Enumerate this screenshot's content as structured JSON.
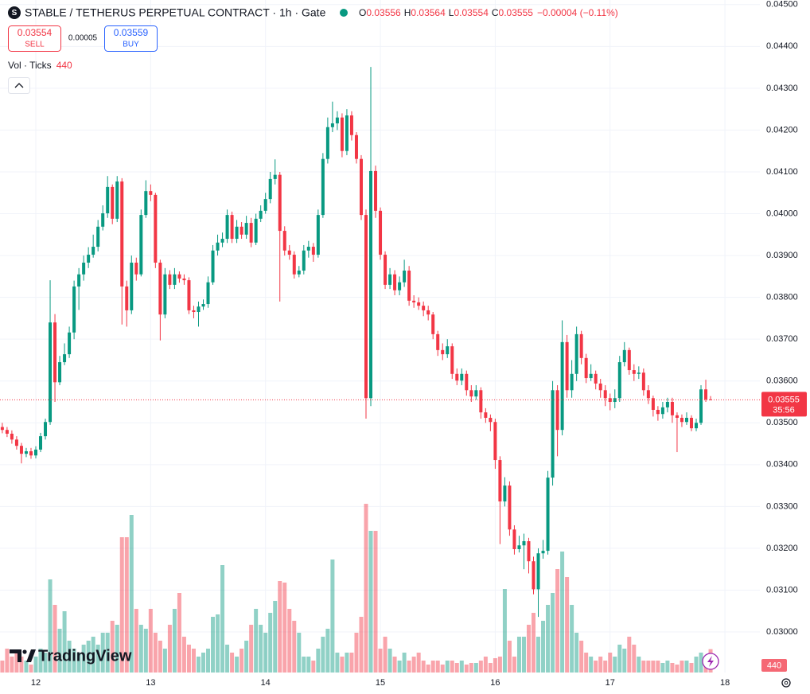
{
  "chart_data": {
    "type": "candlestick",
    "title": "STABLE / TETHERUS PERPETUAL CONTRACT · 1h · Gate",
    "ohlc_labels": [
      "O",
      "H",
      "L",
      "C"
    ],
    "change": "−0.00004 (−0.11%)",
    "sell": {
      "price": 0.03554,
      "label": "SELL"
    },
    "spread": 5e-05,
    "buy": {
      "price": 0.03559,
      "label": "BUY"
    },
    "countdown": "35:56",
    "watermark": "TradingView",
    "up_color": "#089981",
    "down_color": "#f23645",
    "grid": true,
    "xlim": [
      -0.48,
      158.3
    ],
    "xticks": [
      {
        "value": 7,
        "label": "12"
      },
      {
        "value": 31,
        "label": "13"
      },
      {
        "value": 55,
        "label": "14"
      },
      {
        "value": 79,
        "label": "15"
      },
      {
        "value": 103,
        "label": "16"
      },
      {
        "value": 127,
        "label": "17"
      },
      {
        "value": 151,
        "label": "18"
      }
    ],
    "ylim": [
      0.02903,
      0.04511
    ],
    "yticks": [
      {
        "value": 0.03,
        "label": "0.03000"
      },
      {
        "value": 0.031,
        "label": "0.03100"
      },
      {
        "value": 0.032,
        "label": "0.03200"
      },
      {
        "value": 0.033,
        "label": "0.03300"
      },
      {
        "value": 0.034,
        "label": "0.03400"
      },
      {
        "value": 0.035,
        "label": "0.03500"
      },
      {
        "value": 0.036,
        "label": "0.03600"
      },
      {
        "value": 0.037,
        "label": "0.03700"
      },
      {
        "value": 0.038,
        "label": "0.03800"
      },
      {
        "value": 0.039,
        "label": "0.03900"
      },
      {
        "value": 0.04,
        "label": "0.04000"
      },
      {
        "value": 0.041,
        "label": "0.04100"
      },
      {
        "value": 0.042,
        "label": "0.04200"
      },
      {
        "value": 0.043,
        "label": "0.04300"
      },
      {
        "value": 0.044,
        "label": "0.04400"
      },
      {
        "value": 0.045,
        "label": "0.04500"
      }
    ],
    "open": [
      0.0349,
      0.03483,
      0.03474,
      0.0346,
      0.03445,
      0.03426,
      0.03432,
      0.03422,
      0.03436,
      0.03468,
      0.03502,
      0.0374,
      0.03597,
      0.03645,
      0.03664,
      0.03716,
      0.03826,
      0.03855,
      0.03883,
      0.03902,
      0.03921,
      0.03969,
      0.04001,
      0.04064,
      0.03988,
      0.04077,
      0.03826,
      0.03769,
      0.03883,
      0.03855,
      0.03997,
      0.04054,
      0.04045,
      0.03883,
      0.03759,
      0.03855,
      0.0383,
      0.03855,
      0.03845,
      0.03841,
      0.03769,
      0.03765,
      0.03778,
      0.03784,
      0.03836,
      0.03912,
      0.03931,
      0.0394,
      0.03997,
      0.0394,
      0.03969,
      0.0395,
      0.03978,
      0.03931,
      0.03988,
      0.04007,
      0.04035,
      0.04083,
      0.04093,
      0.03959,
      0.03912,
      0.03902,
      0.03855,
      0.03864,
      0.03912,
      0.03921,
      0.03902,
      0.03997,
      0.04131,
      0.04207,
      0.04216,
      0.0423,
      0.0415,
      0.04235,
      0.04188,
      0.04131,
      0.03997,
      0.03559,
      0.04102,
      0.04007,
      0.03902,
      0.0383,
      0.03855,
      0.03817,
      0.03836,
      0.03864,
      0.03792,
      0.03788,
      0.0378,
      0.03769,
      0.03759,
      0.03712,
      0.03674,
      0.03664,
      0.03683,
      0.03617,
      0.03601,
      0.03617,
      0.03578,
      0.03563,
      0.03578,
      0.03525,
      0.03512,
      0.03502,
      0.03411,
      0.03312,
      0.0335,
      0.03245,
      0.03198,
      0.03207,
      0.03217,
      0.03169,
      0.03102,
      0.03188,
      0.03194,
      0.03369,
      0.03578,
      0.03483,
      0.03693,
      0.03578,
      0.03617,
      0.03712,
      0.03655,
      0.03607,
      0.03617,
      0.03594,
      0.03578,
      0.03559,
      0.0355,
      0.03559,
      0.03645,
      0.03674,
      0.03626,
      0.03617,
      0.0362,
      0.03578,
      0.03559,
      0.03531,
      0.03521,
      0.03537,
      0.0355,
      0.03518,
      0.03512,
      0.03502,
      0.03512,
      0.03487,
      0.035,
      0.0358,
      0.03556
    ],
    "high": [
      0.035,
      0.0349,
      0.03482,
      0.03468,
      0.03452,
      0.0344,
      0.0344,
      0.03444,
      0.03476,
      0.0351,
      0.03841,
      0.0376,
      0.0366,
      0.0369,
      0.0373,
      0.0384,
      0.0387,
      0.039,
      0.0392,
      0.0395,
      0.03985,
      0.0402,
      0.0409,
      0.0407,
      0.0409,
      0.04085,
      0.0384,
      0.039,
      0.03895,
      0.0401,
      0.0408,
      0.0407,
      0.0405,
      0.0389,
      0.0387,
      0.03865,
      0.0387,
      0.03862,
      0.03855,
      0.03848,
      0.0378,
      0.0379,
      0.03795,
      0.0385,
      0.03925,
      0.0395,
      0.03955,
      0.0401,
      0.04005,
      0.03985,
      0.0398,
      0.03995,
      0.0399,
      0.04,
      0.0402,
      0.0405,
      0.041,
      0.0413,
      0.041,
      0.0397,
      0.03925,
      0.0391,
      0.03875,
      0.03925,
      0.03935,
      0.0393,
      0.0401,
      0.04145,
      0.0423,
      0.04268,
      0.04245,
      0.0424,
      0.0425,
      0.04245,
      0.04195,
      0.0414,
      0.0401,
      0.04351,
      0.04115,
      0.04015,
      0.0391,
      0.0387,
      0.03865,
      0.0385,
      0.0389,
      0.03875,
      0.03805,
      0.038,
      0.0379,
      0.0378,
      0.03765,
      0.0372,
      0.0369,
      0.037,
      0.0369,
      0.0363,
      0.0363,
      0.03625,
      0.0359,
      0.0359,
      0.03585,
      0.03535,
      0.0352,
      0.0351,
      0.0342,
      0.0337,
      0.0336,
      0.03255,
      0.0323,
      0.03235,
      0.03225,
      0.0318,
      0.032,
      0.0322,
      0.03385,
      0.036,
      0.0359,
      0.03745,
      0.0371,
      0.0365,
      0.0373,
      0.0372,
      0.03665,
      0.0364,
      0.03625,
      0.03605,
      0.0359,
      0.0357,
      0.0358,
      0.0366,
      0.03693,
      0.0368,
      0.0364,
      0.03635,
      0.0363,
      0.0359,
      0.03565,
      0.0354,
      0.0355,
      0.0356,
      0.0356,
      0.03525,
      0.0352,
      0.03525,
      0.03518,
      0.0351,
      0.0359,
      0.03603,
      0.03564
    ],
    "low": [
      0.03475,
      0.03466,
      0.0345,
      0.03436,
      0.03403,
      0.03418,
      0.03414,
      0.03415,
      0.0343,
      0.0346,
      0.03495,
      0.0355,
      0.0359,
      0.03638,
      0.03655,
      0.037,
      0.0377,
      0.0384,
      0.0387,
      0.03895,
      0.0391,
      0.0396,
      0.0399,
      0.03975,
      0.0398,
      0.03735,
      0.0373,
      0.0376,
      0.0384,
      0.0385,
      0.0399,
      0.0403,
      0.0387,
      0.03697,
      0.0375,
      0.0382,
      0.0382,
      0.03835,
      0.0383,
      0.0376,
      0.0375,
      0.0373,
      0.0377,
      0.03775,
      0.0383,
      0.039,
      0.0392,
      0.0393,
      0.0393,
      0.0393,
      0.0394,
      0.0394,
      0.0392,
      0.03925,
      0.0398,
      0.04,
      0.04025,
      0.0407,
      0.0379,
      0.039,
      0.0389,
      0.03845,
      0.03848,
      0.03855,
      0.03895,
      0.03885,
      0.03895,
      0.0399,
      0.0412,
      0.04195,
      0.042,
      0.04135,
      0.0414,
      0.04175,
      0.0412,
      0.03985,
      0.0351,
      0.0354,
      0.0399,
      0.0389,
      0.0382,
      0.0382,
      0.03805,
      0.03805,
      0.03825,
      0.0378,
      0.03775,
      0.0377,
      0.03755,
      0.03745,
      0.037,
      0.0366,
      0.0365,
      0.03655,
      0.03605,
      0.0359,
      0.0359,
      0.03565,
      0.0355,
      0.03555,
      0.0351,
      0.035,
      0.0348,
      0.0339,
      0.0321,
      0.033,
      0.0323,
      0.03185,
      0.0319,
      0.0315,
      0.0314,
      0.0309,
      0.03036,
      0.03175,
      0.03185,
      0.0335,
      0.0342,
      0.0347,
      0.0356,
      0.0356,
      0.036,
      0.0364,
      0.03595,
      0.036,
      0.0358,
      0.0356,
      0.0354,
      0.0353,
      0.03535,
      0.0355,
      0.03635,
      0.03615,
      0.036,
      0.03605,
      0.03565,
      0.03545,
      0.03515,
      0.03505,
      0.0351,
      0.03525,
      0.035,
      0.0343,
      0.0349,
      0.03495,
      0.0348,
      0.0348,
      0.03495,
      0.0355,
      0.03554
    ],
    "close": [
      0.03483,
      0.03474,
      0.0346,
      0.03445,
      0.03426,
      0.03432,
      0.03422,
      0.03436,
      0.03468,
      0.03502,
      0.0374,
      0.03597,
      0.03645,
      0.03664,
      0.03716,
      0.03826,
      0.03855,
      0.03883,
      0.03902,
      0.03921,
      0.03969,
      0.04001,
      0.04064,
      0.03988,
      0.04077,
      0.03826,
      0.03769,
      0.03883,
      0.03855,
      0.03997,
      0.04054,
      0.04045,
      0.03883,
      0.03759,
      0.03855,
      0.0383,
      0.03855,
      0.03845,
      0.03841,
      0.03769,
      0.03765,
      0.03778,
      0.03784,
      0.03836,
      0.03912,
      0.03931,
      0.0394,
      0.03997,
      0.0394,
      0.03969,
      0.0395,
      0.03978,
      0.03931,
      0.03988,
      0.04007,
      0.04035,
      0.04083,
      0.04093,
      0.03959,
      0.03912,
      0.03902,
      0.03855,
      0.03864,
      0.03912,
      0.03921,
      0.03902,
      0.03997,
      0.04131,
      0.04207,
      0.04216,
      0.0423,
      0.0415,
      0.04235,
      0.04188,
      0.04131,
      0.03997,
      0.03559,
      0.04102,
      0.04007,
      0.03902,
      0.0383,
      0.03855,
      0.03817,
      0.03836,
      0.03864,
      0.03792,
      0.03788,
      0.0378,
      0.03769,
      0.03759,
      0.03712,
      0.03674,
      0.03664,
      0.03683,
      0.03617,
      0.03601,
      0.03617,
      0.03578,
      0.03563,
      0.03578,
      0.03525,
      0.03512,
      0.03502,
      0.03411,
      0.03312,
      0.0335,
      0.03245,
      0.03198,
      0.03207,
      0.03217,
      0.03169,
      0.03102,
      0.03188,
      0.03194,
      0.03369,
      0.03578,
      0.03483,
      0.03693,
      0.03578,
      0.03617,
      0.03712,
      0.03655,
      0.03607,
      0.03617,
      0.03594,
      0.03578,
      0.03559,
      0.0355,
      0.03559,
      0.03645,
      0.03674,
      0.03626,
      0.03617,
      0.0362,
      0.03578,
      0.03559,
      0.03531,
      0.03521,
      0.03537,
      0.0355,
      0.03518,
      0.03512,
      0.03502,
      0.03512,
      0.03487,
      0.035,
      0.0358,
      0.03556,
      0.03555
    ],
    "volume": {
      "name": "Vol · Ticks",
      "ylim": [
        0,
        4500
      ],
      "values": [
        225,
        450,
        300,
        375,
        300,
        225,
        150,
        300,
        450,
        375,
        1755,
        1275,
        825,
        1155,
        600,
        450,
        375,
        525,
        600,
        675,
        525,
        750,
        750,
        975,
        900,
        2550,
        2550,
        2970,
        1200,
        900,
        825,
        1200,
        750,
        600,
        450,
        900,
        1200,
        1500,
        675,
        525,
        450,
        300,
        375,
        450,
        1050,
        1095,
        2025,
        525,
        375,
        300,
        450,
        600,
        900,
        1200,
        900,
        750,
        1125,
        1350,
        1725,
        1695,
        1200,
        975,
        750,
        300,
        300,
        225,
        450,
        675,
        825,
        2130,
        375,
        300,
        375,
        375,
        750,
        1050,
        3180,
        2670,
        2670,
        450,
        675,
        450,
        300,
        225,
        375,
        225,
        300,
        375,
        225,
        150,
        225,
        225,
        150,
        225,
        225,
        180,
        225,
        150,
        180,
        180,
        225,
        300,
        180,
        270,
        300,
        1575,
        600,
        300,
        675,
        675,
        900,
        1125,
        675,
        975,
        1275,
        1500,
        1950,
        2280,
        1800,
        1275,
        750,
        600,
        375,
        300,
        225,
        300,
        225,
        375,
        300,
        525,
        450,
        675,
        525,
        300,
        225,
        225,
        225,
        225,
        180,
        225,
        180,
        150,
        225,
        225,
        180,
        300,
        375,
        180,
        440
      ]
    }
  }
}
